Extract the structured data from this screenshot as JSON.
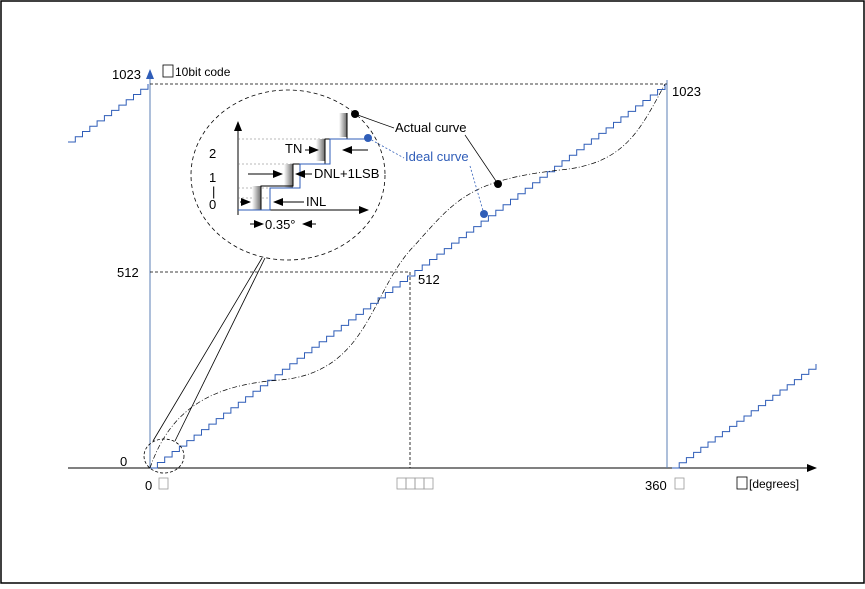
{
  "y_axis": {
    "unit_box": "□",
    "label": "10bit code",
    "top": "1023",
    "mid": "512",
    "zero": "0"
  },
  "x_axis": {
    "zero": "0",
    "zero_box": "□",
    "end": "360",
    "end_box": "□",
    "unit_box": "□",
    "label": "[degrees]",
    "mid_boxes": "□□□□"
  },
  "markers": {
    "top_right": "1023",
    "mid_right": "512"
  },
  "inset": {
    "tick_2": "2",
    "tick_1": "1",
    "tick_bar": "|",
    "tick_0": "0",
    "tn": "TN",
    "dnl": "DNL+1LSB",
    "inl": "INL",
    "step": "0.35°"
  },
  "legend": {
    "actual": "Actual curve",
    "ideal": "Ideal curve"
  },
  "colors": {
    "ideal": "#2f5db8",
    "axis_line": "#5b7fb5",
    "frame": "#000000",
    "actual": "#000000"
  }
}
